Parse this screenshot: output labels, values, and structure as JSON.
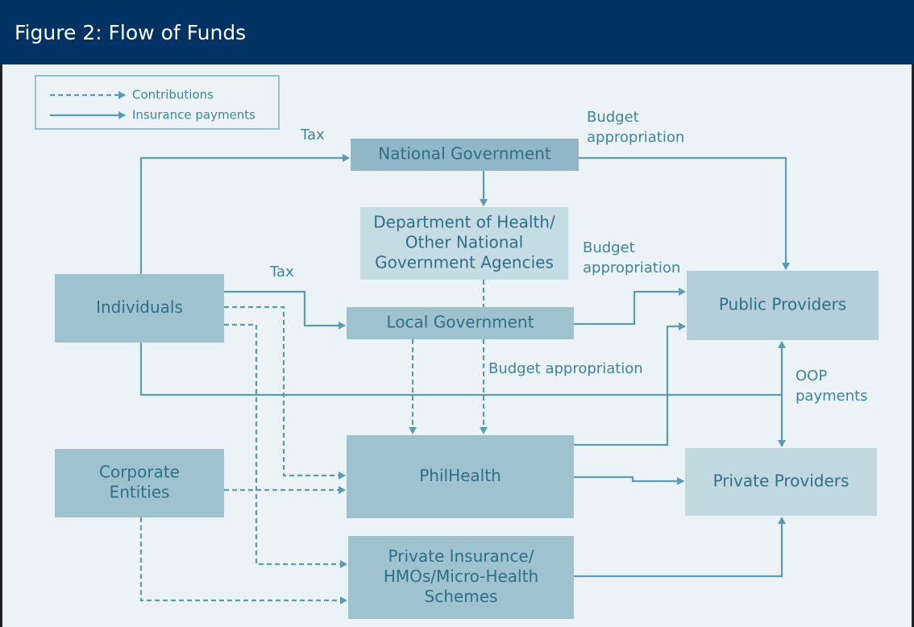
{
  "header": {
    "title": "Figure 2: Flow of Funds"
  },
  "legend": {
    "items": [
      "Contributions",
      "Insurance payments"
    ]
  },
  "nodes": [
    {
      "lines": [
        "National Government"
      ]
    },
    {
      "lines": [
        "Department of Health/",
        "Other National",
        "Government Agencies"
      ]
    },
    {
      "lines": [
        "Individuals"
      ]
    },
    {
      "lines": [
        "Local Government"
      ]
    },
    {
      "lines": [
        "Public Providers"
      ]
    },
    {
      "lines": [
        "PhilHealth"
      ]
    },
    {
      "lines": [
        "Corporate",
        "Entities"
      ]
    },
    {
      "lines": [
        "Private Providers"
      ]
    },
    {
      "lines": [
        "Private Insurance/",
        "HMOs/Micro-Health",
        "Schemes"
      ]
    }
  ],
  "edge_labels": [
    {
      "lines": [
        "Tax"
      ]
    },
    {
      "lines": [
        "Budget",
        "appropriation"
      ]
    },
    {
      "lines": [
        "Tax"
      ]
    },
    {
      "lines": [
        "Budget",
        "appropriation"
      ]
    },
    {
      "lines": [
        "Budget appropriation"
      ]
    },
    {
      "lines": [
        "OOP",
        "payments"
      ]
    }
  ]
}
